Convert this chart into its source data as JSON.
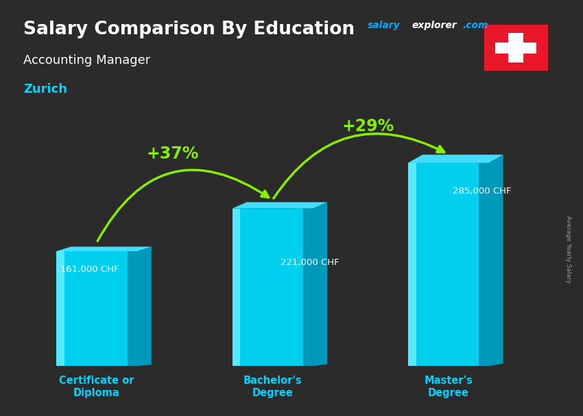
{
  "title_line1": "Salary Comparison By Education",
  "subtitle1": "Accounting Manager",
  "subtitle2": "Zurich",
  "categories": [
    "Certificate or\nDiploma",
    "Bachelor's\nDegree",
    "Master's\nDegree"
  ],
  "values": [
    161000,
    221000,
    285000
  ],
  "value_labels": [
    "161,000 CHF",
    "221,000 CHF",
    "285,000 CHF"
  ],
  "pct_labels": [
    "+37%",
    "+29%"
  ],
  "bar_face_color": "#00cfef",
  "bar_left_color": "#55e8ff",
  "bar_right_color": "#0099bb",
  "bar_top_color": "#44ddff",
  "background_color": "#2a2a2a",
  "title_color": "#ffffff",
  "subtitle1_color": "#ffffff",
  "subtitle2_color": "#00d4ff",
  "category_color": "#00d4ff",
  "value_label_color": "#ffffff",
  "pct_color": "#88ee00",
  "arrow_color": "#88ee00",
  "site_salary_color": "#00aaff",
  "site_explorer_color": "#ffffff",
  "site_com_color": "#00aaff",
  "ylabel_text": "Average Yearly Salary",
  "bar_width": 0.55,
  "ylim_max": 350000,
  "fig_width": 8.5,
  "fig_height": 6.06,
  "bar_positions": [
    0.5,
    1.7,
    2.9
  ]
}
